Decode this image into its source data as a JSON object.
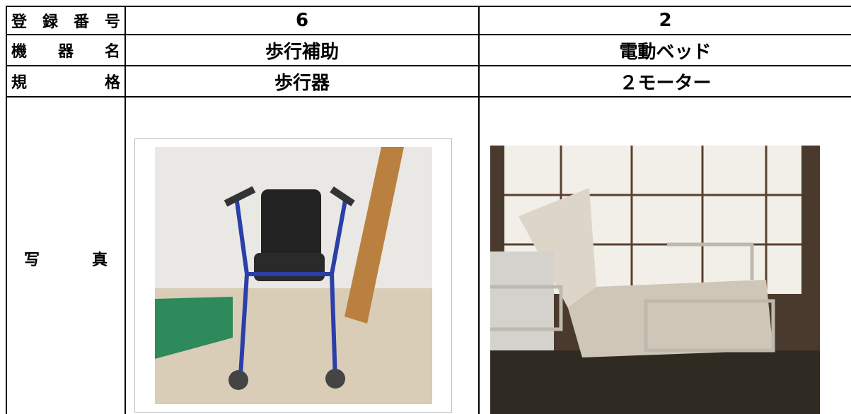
{
  "table": {
    "rows": [
      [
        "登録番号",
        "6",
        "2"
      ],
      [
        "機器名",
        "歩行補助",
        "電動ベッド"
      ],
      [
        "規格",
        "歩行器",
        "２モーター"
      ],
      [
        "写真"
      ]
    ]
  }
}
